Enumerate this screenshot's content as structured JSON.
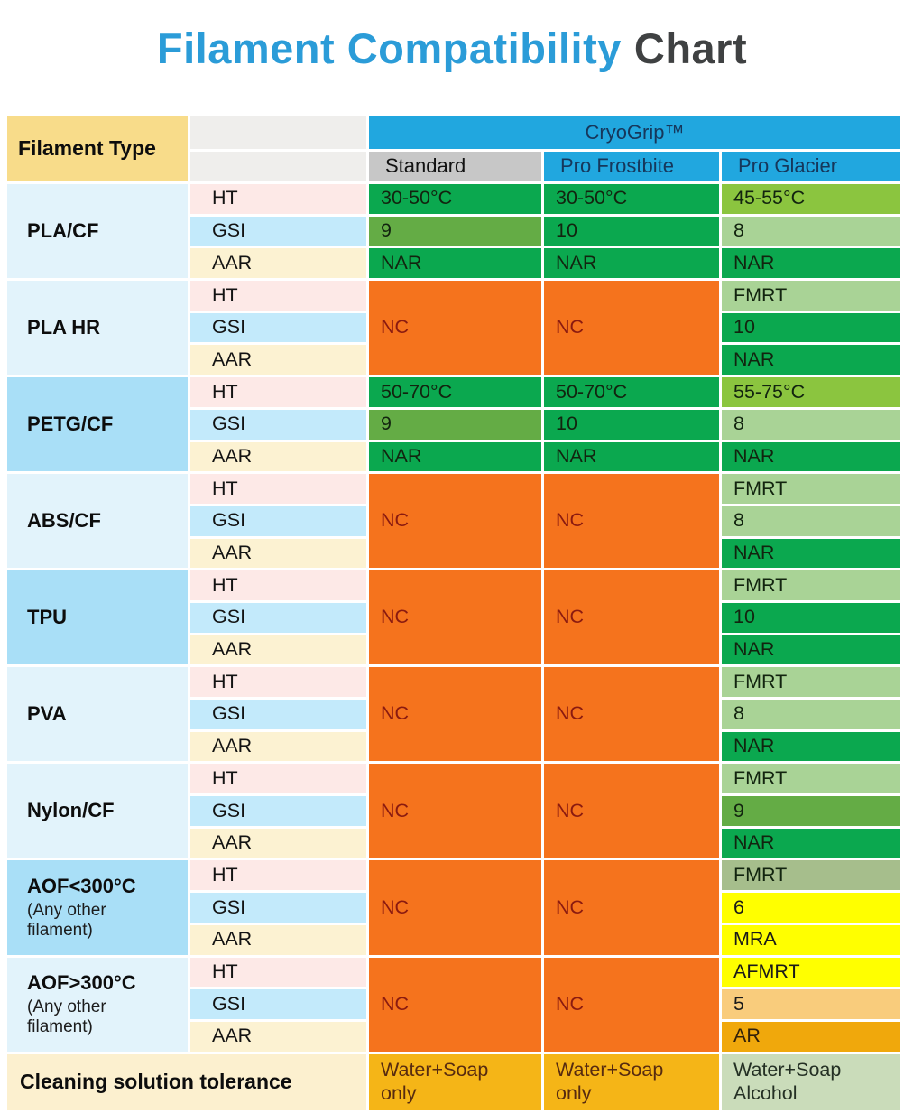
{
  "title": {
    "part1": "Filament Compatibility",
    "part2": "Chart"
  },
  "chart_data": {
    "type": "table",
    "title": "Filament Compatibility Chart",
    "corner_label": "Filament Type",
    "brand_header": "CryoGrip™",
    "product_columns": [
      "Standard",
      "Pro Frostbite",
      "Pro Glacier"
    ],
    "metric_labels": [
      "HT",
      "GSI",
      "AAR"
    ],
    "groups": [
      {
        "filament": "PLA/CF",
        "note": "",
        "shade": "light",
        "standard": {
          "merged": false,
          "cells": [
            [
              "30-50°C",
              "green"
            ],
            [
              "9",
              "midGreen"
            ],
            [
              "NAR",
              "green"
            ]
          ]
        },
        "pro_frostbite": {
          "merged": false,
          "cells": [
            [
              "30-50°C",
              "green"
            ],
            [
              "10",
              "green"
            ],
            [
              "NAR",
              "green"
            ]
          ]
        },
        "pro_glacier": {
          "merged": false,
          "cells": [
            [
              "45-55°C",
              "lightGreen"
            ],
            [
              "8",
              "paleGreen"
            ],
            [
              "NAR",
              "green"
            ]
          ]
        }
      },
      {
        "filament": "PLA HR",
        "note": "",
        "shade": "light",
        "standard": {
          "merged": true,
          "text": "NC",
          "color": "orange"
        },
        "pro_frostbite": {
          "merged": true,
          "text": "NC",
          "color": "orange"
        },
        "pro_glacier": {
          "merged": false,
          "cells": [
            [
              "FMRT",
              "paleGreen"
            ],
            [
              "10",
              "green"
            ],
            [
              "NAR",
              "green"
            ]
          ]
        }
      },
      {
        "filament": "PETG/CF",
        "note": "",
        "shade": "dark",
        "standard": {
          "merged": false,
          "cells": [
            [
              "50-70°C",
              "green"
            ],
            [
              "9",
              "midGreen"
            ],
            [
              "NAR",
              "green"
            ]
          ]
        },
        "pro_frostbite": {
          "merged": false,
          "cells": [
            [
              "50-70°C",
              "green"
            ],
            [
              "10",
              "green"
            ],
            [
              "NAR",
              "green"
            ]
          ]
        },
        "pro_glacier": {
          "merged": false,
          "cells": [
            [
              "55-75°C",
              "lightGreen"
            ],
            [
              "8",
              "paleGreen"
            ],
            [
              "NAR",
              "green"
            ]
          ]
        }
      },
      {
        "filament": "ABS/CF",
        "note": "",
        "shade": "light",
        "standard": {
          "merged": true,
          "text": "NC",
          "color": "orange"
        },
        "pro_frostbite": {
          "merged": true,
          "text": "NC",
          "color": "orange"
        },
        "pro_glacier": {
          "merged": false,
          "cells": [
            [
              "FMRT",
              "paleGreen"
            ],
            [
              "8",
              "paleGreen"
            ],
            [
              "NAR",
              "green"
            ]
          ]
        }
      },
      {
        "filament": "TPU",
        "note": "",
        "shade": "dark",
        "standard": {
          "merged": true,
          "text": "NC",
          "color": "orange"
        },
        "pro_frostbite": {
          "merged": true,
          "text": "NC",
          "color": "orange"
        },
        "pro_glacier": {
          "merged": false,
          "cells": [
            [
              "FMRT",
              "paleGreen"
            ],
            [
              "10",
              "green"
            ],
            [
              "NAR",
              "green"
            ]
          ]
        }
      },
      {
        "filament": "PVA",
        "note": "",
        "shade": "light",
        "standard": {
          "merged": true,
          "text": "NC",
          "color": "orange"
        },
        "pro_frostbite": {
          "merged": true,
          "text": "NC",
          "color": "orange"
        },
        "pro_glacier": {
          "merged": false,
          "cells": [
            [
              "FMRT",
              "paleGreen"
            ],
            [
              "8",
              "paleGreen"
            ],
            [
              "NAR",
              "green"
            ]
          ]
        }
      },
      {
        "filament": "Nylon/CF",
        "note": "",
        "shade": "light",
        "standard": {
          "merged": true,
          "text": "NC",
          "color": "orange"
        },
        "pro_frostbite": {
          "merged": true,
          "text": "NC",
          "color": "orange"
        },
        "pro_glacier": {
          "merged": false,
          "cells": [
            [
              "FMRT",
              "paleGreen"
            ],
            [
              "9",
              "midGreen"
            ],
            [
              "NAR",
              "green"
            ]
          ]
        }
      },
      {
        "filament": "AOF<300°C",
        "note": "(Any other\nfilament)",
        "shade": "dark",
        "standard": {
          "merged": true,
          "text": "NC",
          "color": "orange"
        },
        "pro_frostbite": {
          "merged": true,
          "text": "NC",
          "color": "orange"
        },
        "pro_glacier": {
          "merged": false,
          "cells": [
            [
              "FMRT",
              "sage"
            ],
            [
              "6",
              "yellow"
            ],
            [
              "MRA",
              "yellow"
            ]
          ]
        }
      },
      {
        "filament": "AOF>300°C",
        "note": "(Any other\nfilament)",
        "shade": "light",
        "standard": {
          "merged": true,
          "text": "NC",
          "color": "orange"
        },
        "pro_frostbite": {
          "merged": true,
          "text": "NC",
          "color": "orange"
        },
        "pro_glacier": {
          "merged": false,
          "cells": [
            [
              "AFMRT",
              "yellow"
            ],
            [
              "5",
              "tan"
            ],
            [
              "AR",
              "amber"
            ]
          ]
        }
      }
    ],
    "footer": {
      "label": "Cleaning solution tolerance",
      "values": [
        [
          "Water+Soap\nonly",
          "amberDark"
        ],
        [
          "Water+Soap\nonly",
          "amberDark"
        ],
        [
          "Water+Soap\nAlcohol",
          "paleSage"
        ]
      ]
    }
  },
  "colors": {
    "title_accent": "#2B9CD8",
    "title_dark": "#3F4142",
    "brand_blue": "#21A7DF",
    "header_navy": "#16375B",
    "header_yellow": "#F8DC8A",
    "header_gray": "#EFEEEC",
    "product_gray": "#C7C7C7",
    "filament_light": "#E2F3FB",
    "filament_dark": "#A9DFF7",
    "ht_pink": "#FDE9E7",
    "gsi_blue": "#C3EAFB",
    "aar_cream": "#FCF2D2",
    "footer_cream": "#FCF0CF",
    "cell": {
      "green": {
        "bg": "#0BA84F",
        "fg": "#12240F"
      },
      "midGreen": {
        "bg": "#64AC45",
        "fg": "#12240F"
      },
      "lightGreen": {
        "bg": "#8BC53F",
        "fg": "#12240F"
      },
      "paleGreen": {
        "bg": "#A9D396",
        "fg": "#12240F"
      },
      "sage": {
        "bg": "#A6BE8C",
        "fg": "#12240F"
      },
      "orange": {
        "bg": "#F5731D",
        "fg": "#8A1A10"
      },
      "yellow": {
        "bg": "#FFFF00",
        "fg": "#1A1A1A"
      },
      "tan": {
        "bg": "#F9CC7C",
        "fg": "#1A1A1A"
      },
      "amber": {
        "bg": "#F0A80C",
        "fg": "#33210A"
      },
      "amberDark": {
        "bg": "#F5B517",
        "fg": "#572B10"
      },
      "paleSage": {
        "bg": "#CADCBA",
        "fg": "#243024"
      }
    }
  }
}
